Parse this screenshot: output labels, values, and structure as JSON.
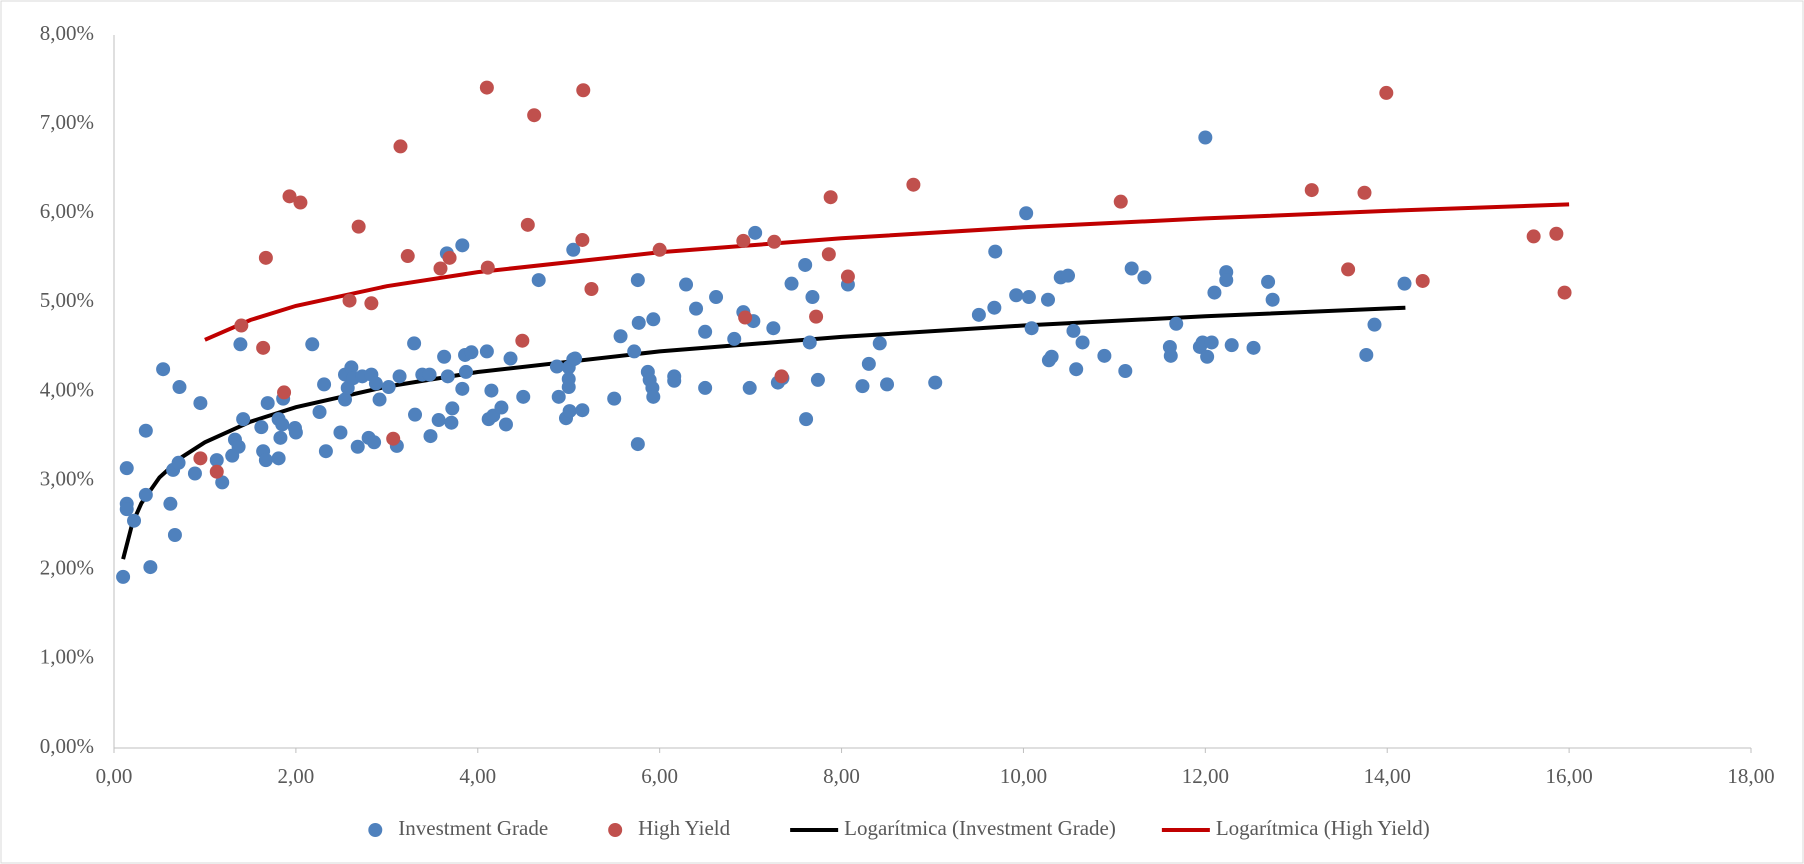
{
  "chart_data": {
    "type": "scatter",
    "xlim": [
      0,
      18
    ],
    "xticks": [
      {
        "value": 0,
        "label": "0,00"
      },
      {
        "value": 2,
        "label": "2,00"
      },
      {
        "value": 4,
        "label": "4,00"
      },
      {
        "value": 6,
        "label": "6,00"
      },
      {
        "value": 8,
        "label": "8,00"
      },
      {
        "value": 10,
        "label": "10,00"
      },
      {
        "value": 12,
        "label": "12,00"
      },
      {
        "value": 14,
        "label": "14,00"
      },
      {
        "value": 16,
        "label": "16,00"
      },
      {
        "value": 18,
        "label": "18,00"
      }
    ],
    "ylim": [
      0,
      8
    ],
    "yticks": [
      {
        "value": 0,
        "label": "0,00%"
      },
      {
        "value": 1,
        "label": "1,00%"
      },
      {
        "value": 2,
        "label": "2,00%"
      },
      {
        "value": 3,
        "label": "3,00%"
      },
      {
        "value": 4,
        "label": "4,00%"
      },
      {
        "value": 5,
        "label": "5,00%"
      },
      {
        "value": 6,
        "label": "6,00%"
      },
      {
        "value": 7,
        "label": "7,00%"
      },
      {
        "value": 8,
        "label": "8,00%"
      }
    ],
    "grid": false,
    "legend": "bottom",
    "series": [
      {
        "name": "Investment Grade",
        "type": "scatter",
        "color": "#4f81bd",
        "x": [
          0.1,
          0.14,
          0.14,
          0.14,
          0.22,
          0.35,
          0.35,
          0.4,
          0.54,
          0.62,
          0.65,
          0.67,
          0.71,
          0.72,
          0.89,
          0.95,
          1.13,
          1.19,
          1.3,
          1.33,
          1.37,
          1.39,
          1.42,
          1.62,
          1.64,
          1.67,
          1.69,
          1.81,
          1.81,
          1.83,
          1.85,
          1.86,
          1.99,
          2.0,
          2.18,
          2.26,
          2.31,
          2.33,
          2.49,
          2.54,
          2.54,
          2.57,
          2.61,
          2.63,
          2.68,
          2.73,
          2.8,
          2.83,
          2.86,
          2.88,
          2.92,
          3.02,
          3.11,
          3.14,
          3.3,
          3.31,
          3.39,
          3.47,
          3.48,
          3.57,
          3.63,
          3.66,
          3.67,
          3.71,
          3.72,
          3.83,
          3.83,
          3.86,
          3.87,
          3.93,
          4.1,
          4.12,
          4.15,
          4.17,
          4.26,
          4.31,
          4.36,
          4.5,
          4.67,
          4.87,
          4.89,
          4.97,
          5.0,
          5.0,
          5.0,
          5.01,
          5.05,
          5.05,
          5.07,
          5.15,
          5.5,
          5.57,
          5.72,
          5.76,
          5.76,
          5.77,
          5.87,
          5.89,
          5.92,
          5.93,
          5.93,
          6.16,
          6.16,
          6.29,
          6.4,
          6.5,
          6.5,
          6.62,
          6.82,
          6.92,
          6.99,
          7.03,
          7.05,
          7.25,
          7.3,
          7.35,
          7.45,
          7.6,
          7.61,
          7.65,
          7.68,
          7.74,
          8.07,
          8.23,
          8.3,
          8.42,
          8.5,
          9.03,
          9.51,
          9.68,
          9.69,
          9.92,
          10.03,
          10.06,
          10.09,
          10.27,
          10.28,
          10.31,
          10.41,
          10.49,
          10.55,
          10.58,
          10.65,
          10.89,
          11.12,
          11.19,
          11.33,
          11.61,
          11.62,
          11.68,
          11.94,
          11.97,
          12.0,
          12.02,
          12.07,
          12.1,
          12.23,
          12.23,
          12.29,
          12.53,
          12.69,
          12.74,
          13.77,
          13.86,
          14.19
        ],
        "values": [
          1.92,
          3.14,
          2.74,
          2.68,
          2.55,
          3.56,
          2.84,
          2.03,
          4.25,
          2.74,
          3.12,
          2.39,
          3.2,
          4.05,
          3.08,
          3.87,
          3.23,
          2.98,
          3.28,
          3.46,
          3.38,
          4.53,
          3.69,
          3.6,
          3.33,
          3.23,
          3.87,
          3.69,
          3.25,
          3.48,
          3.63,
          3.92,
          3.59,
          3.54,
          4.53,
          3.77,
          4.08,
          3.33,
          3.54,
          3.91,
          4.19,
          4.04,
          4.27,
          4.15,
          3.38,
          4.17,
          3.48,
          4.19,
          3.43,
          4.09,
          3.91,
          4.05,
          3.39,
          4.17,
          4.54,
          3.74,
          4.19,
          4.19,
          3.5,
          3.68,
          4.39,
          5.55,
          4.17,
          3.65,
          3.81,
          5.64,
          4.03,
          4.41,
          4.22,
          4.44,
          4.45,
          3.69,
          4.01,
          3.73,
          3.82,
          3.63,
          4.37,
          3.94,
          5.25,
          4.28,
          3.94,
          3.7,
          4.27,
          4.14,
          4.05,
          3.78,
          5.59,
          4.36,
          4.37,
          3.79,
          3.92,
          4.62,
          4.45,
          5.25,
          3.41,
          4.77,
          4.22,
          4.13,
          4.04,
          3.94,
          4.81,
          4.17,
          4.12,
          5.2,
          4.93,
          4.67,
          4.04,
          5.06,
          4.59,
          4.89,
          4.04,
          4.79,
          5.78,
          4.71,
          4.1,
          4.15,
          5.21,
          5.42,
          3.69,
          4.55,
          5.06,
          4.13,
          5.2,
          4.06,
          4.31,
          4.54,
          4.08,
          4.1,
          4.86,
          4.94,
          5.57,
          5.08,
          6.0,
          5.06,
          4.71,
          5.03,
          4.35,
          4.39,
          5.28,
          5.3,
          4.68,
          4.25,
          4.55,
          4.4,
          4.23,
          5.38,
          5.28,
          4.5,
          4.4,
          4.76,
          4.5,
          4.55,
          6.85,
          4.39,
          4.55,
          5.11,
          5.34,
          5.25,
          4.52,
          4.49,
          5.23,
          5.03,
          4.41,
          4.75,
          5.21
        ]
      },
      {
        "name": "High Yield",
        "type": "scatter",
        "color": "#c0504d",
        "x": [
          0.95,
          1.13,
          1.4,
          1.64,
          1.67,
          1.87,
          1.93,
          2.05,
          2.59,
          2.69,
          2.83,
          3.07,
          3.15,
          3.23,
          3.59,
          3.69,
          4.1,
          4.11,
          4.49,
          4.55,
          4.62,
          5.16,
          5.15,
          5.25,
          6.0,
          6.92,
          6.94,
          7.26,
          7.34,
          7.72,
          7.86,
          7.88,
          8.07,
          8.79,
          11.07,
          13.17,
          13.57,
          13.75,
          13.99,
          14.39,
          15.61,
          15.86,
          15.95
        ],
        "values": [
          3.25,
          3.1,
          4.74,
          4.49,
          5.5,
          3.99,
          6.19,
          6.12,
          5.02,
          5.85,
          4.99,
          3.47,
          6.75,
          5.52,
          5.38,
          5.5,
          7.41,
          5.39,
          4.57,
          5.87,
          7.1,
          7.38,
          5.7,
          5.15,
          5.59,
          5.69,
          4.83,
          5.68,
          4.17,
          4.84,
          5.54,
          6.18,
          5.29,
          6.32,
          6.13,
          6.26,
          5.37,
          6.23,
          7.35,
          5.24,
          5.74,
          5.77,
          5.11
        ]
      },
      {
        "name": "Logarítmica (Investment Grade)",
        "type": "line",
        "color": "#000000",
        "x": [
          0.1,
          0.2,
          0.3,
          0.5,
          0.75,
          1,
          1.5,
          2,
          3,
          4,
          6,
          8,
          10,
          12,
          14.2
        ],
        "values": [
          2.12,
          2.514,
          2.745,
          3.036,
          3.266,
          3.43,
          3.661,
          3.824,
          4.055,
          4.219,
          4.45,
          4.613,
          4.74,
          4.844,
          4.94
        ]
      },
      {
        "name": "Logarítmica (High Yield)",
        "type": "line",
        "color": "#c00000",
        "x": [
          1,
          1.5,
          2,
          3,
          4,
          6,
          8,
          10,
          12,
          14,
          16
        ],
        "values": [
          4.58,
          4.802,
          4.96,
          5.182,
          5.34,
          5.562,
          5.719,
          5.842,
          5.942,
          6.026,
          6.099
        ]
      }
    ]
  }
}
